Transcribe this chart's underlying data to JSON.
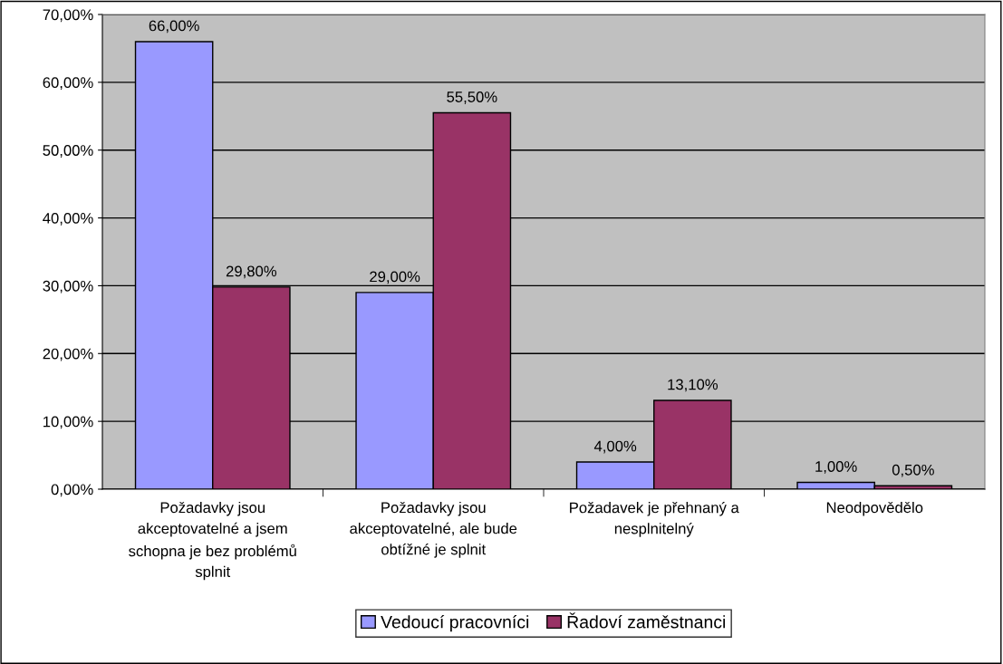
{
  "chart_data": {
    "type": "bar",
    "categories": [
      "Požadavky jsou\nakceptovatelné a jsem\nschopna je bez problémů\nsplnit",
      "Požadavky jsou\nakceptovatelné, ale bude\nobtížné je splnit",
      "Požadavek je přehnaný a\nnesplnitelný",
      "Neodpovědělo"
    ],
    "series": [
      {
        "name": "Vedoucí pracovníci",
        "color": "#9999ff",
        "values": [
          66.0,
          29.0,
          4.0,
          1.0
        ],
        "value_labels": [
          "66,00%",
          "29,00%",
          "4,00%",
          "1,00%"
        ]
      },
      {
        "name": "Řadoví zaměstnanci",
        "color": "#993366",
        "values": [
          29.8,
          55.5,
          13.1,
          0.5
        ],
        "value_labels": [
          "29,80%",
          "55,50%",
          "13,10%",
          "0,50%"
        ]
      }
    ],
    "ylim": [
      0,
      70
    ],
    "yticks": [
      {
        "value": 0,
        "label": "0,00%"
      },
      {
        "value": 10,
        "label": "10,00%"
      },
      {
        "value": 20,
        "label": "20,00%"
      },
      {
        "value": 30,
        "label": "30,00%"
      },
      {
        "value": 40,
        "label": "40,00%"
      },
      {
        "value": 50,
        "label": "50,00%"
      },
      {
        "value": 60,
        "label": "60,00%"
      },
      {
        "value": 70,
        "label": "70,00%"
      }
    ],
    "grid": "y",
    "legend": "bottom"
  }
}
